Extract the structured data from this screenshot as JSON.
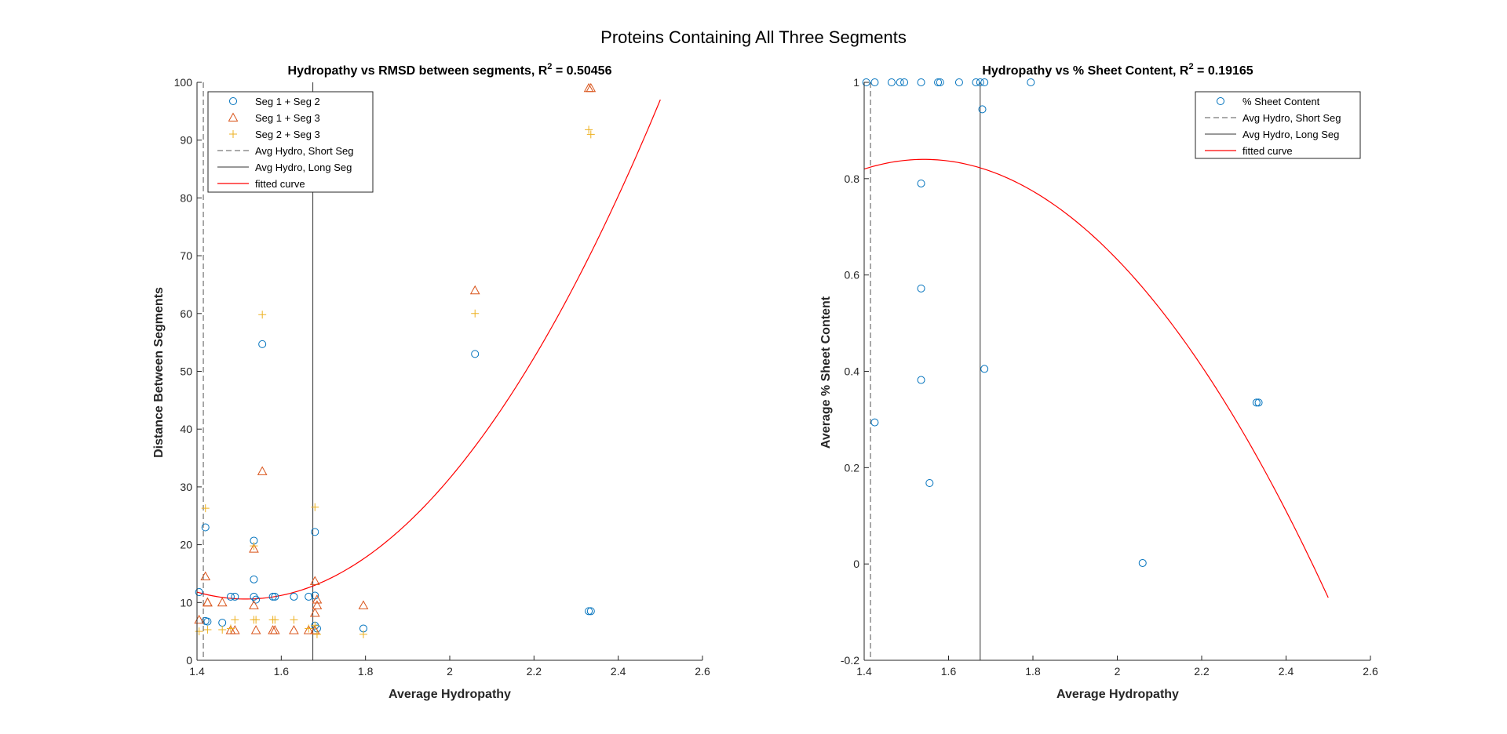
{
  "figure": {
    "suptitle": "Proteins Containing All Three Segments"
  },
  "colors": {
    "blue": "#0072BD",
    "orange": "#D95319",
    "yellow": "#EDB120",
    "red": "#FF0000",
    "line": "#262626"
  },
  "chart_data": [
    {
      "type": "scatter",
      "title_main": "Hydropathy vs RMSD between segments, R",
      "title_sup": "2",
      "title_end": " = 0.50456",
      "xlabel": "Average Hydropathy",
      "ylabel": "Distance Between Segments",
      "xlim": [
        1.4,
        2.6
      ],
      "ylim": [
        0,
        100
      ],
      "xticks": [
        1.4,
        1.6,
        1.8,
        2.0,
        2.2,
        2.4,
        2.6
      ],
      "xtick_labels": [
        "1.4",
        "1.6",
        "1.8",
        "2",
        "2.2",
        "2.4",
        "2.6"
      ],
      "yticks": [
        0,
        10,
        20,
        30,
        40,
        50,
        60,
        70,
        80,
        90,
        100
      ],
      "ytick_labels": [
        "0",
        "10",
        "20",
        "30",
        "40",
        "50",
        "60",
        "70",
        "80",
        "90",
        "100"
      ],
      "grid": false,
      "legend_position": "top-left",
      "series": [
        {
          "name": "Seg 1 + Seg 2",
          "marker": "circle",
          "color": "#0072BD",
          "x": [
            1.405,
            1.42,
            1.42,
            1.425,
            1.46,
            1.48,
            1.49,
            1.535,
            1.535,
            1.535,
            1.54,
            1.555,
            1.58,
            1.585,
            1.63,
            1.665,
            1.68,
            1.68,
            1.68,
            1.685,
            1.795,
            2.06,
            2.33,
            2.335
          ],
          "y": [
            11.8,
            23,
            6.8,
            6.7,
            6.5,
            11,
            11,
            20.7,
            14,
            11,
            10.5,
            54.7,
            11,
            11,
            11,
            11,
            22.2,
            11.2,
            6,
            5.5,
            5.5,
            53,
            8.5,
            8.5
          ]
        },
        {
          "name": "Seg 1 + Seg 3",
          "marker": "triangle",
          "color": "#D95319",
          "x": [
            1.405,
            1.42,
            1.425,
            1.425,
            1.46,
            1.48,
            1.49,
            1.535,
            1.535,
            1.54,
            1.555,
            1.58,
            1.585,
            1.63,
            1.665,
            1.68,
            1.68,
            1.68,
            1.685,
            1.685,
            1.795,
            2.06,
            2.33,
            2.335
          ],
          "y": [
            7,
            14.5,
            10,
            10,
            10,
            5.2,
            5.2,
            19.3,
            9.5,
            5.2,
            32.7,
            5.2,
            5.2,
            5.2,
            5.2,
            13.7,
            8.2,
            5.2,
            10.5,
            9.5,
            9.5,
            64,
            99,
            99
          ]
        },
        {
          "name": "Seg 2 + Seg 3",
          "marker": "plus",
          "color": "#EDB120",
          "x": [
            1.405,
            1.42,
            1.425,
            1.46,
            1.48,
            1.49,
            1.535,
            1.535,
            1.54,
            1.555,
            1.58,
            1.585,
            1.63,
            1.665,
            1.68,
            1.68,
            1.685,
            1.795,
            2.06,
            2.33,
            2.335
          ],
          "y": [
            5,
            26.3,
            5.3,
            5.3,
            5.5,
            7,
            7,
            19.8,
            7,
            59.8,
            7,
            7,
            7,
            5.5,
            26.5,
            6,
            4.5,
            4.5,
            60,
            91.8,
            91
          ]
        }
      ],
      "lines": [
        {
          "name": "Avg Hydro, Short Seg",
          "style": "dashed",
          "x": 1.415
        },
        {
          "name": "Avg Hydro, Long Seg",
          "style": "solid",
          "x": 1.675
        }
      ],
      "fit": {
        "name": "fitted curve",
        "kind": "quadratic",
        "x": [
          1.4,
          2.5
        ],
        "points": [
          [
            1.4,
            11.8
          ],
          [
            1.52,
            10.6
          ],
          [
            2.5,
            97
          ]
        ]
      }
    },
    {
      "type": "scatter",
      "title_main": "Hydropathy vs % Sheet Content, R",
      "title_sup": "2",
      "title_end": " = 0.19165",
      "xlabel": "Average Hydropathy",
      "ylabel": "Average % Sheet Content",
      "xlim": [
        1.4,
        2.6
      ],
      "ylim": [
        -0.2,
        1.0
      ],
      "xticks": [
        1.4,
        1.6,
        1.8,
        2.0,
        2.2,
        2.4,
        2.6
      ],
      "xtick_labels": [
        "1.4",
        "1.6",
        "1.8",
        "2",
        "2.2",
        "2.4",
        "2.6"
      ],
      "yticks": [
        -0.2,
        0,
        0.2,
        0.4,
        0.6,
        0.8,
        1.0
      ],
      "ytick_labels": [
        "-0.2",
        "0",
        "0.2",
        "0.4",
        "0.6",
        "0.8",
        "1"
      ],
      "grid": false,
      "legend_position": "top-right",
      "series": [
        {
          "name": "% Sheet Content",
          "marker": "circle",
          "color": "#0072BD",
          "x": [
            1.405,
            1.425,
            1.465,
            1.485,
            1.495,
            1.535,
            1.575,
            1.58,
            1.625,
            1.665,
            1.675,
            1.685,
            1.795,
            1.535,
            1.535,
            1.535,
            1.555,
            1.68,
            1.685,
            1.425,
            2.06,
            2.33,
            2.335
          ],
          "y": [
            1,
            1,
            1,
            1,
            1,
            1,
            1,
            1,
            1,
            1,
            1,
            1,
            1,
            0.79,
            0.572,
            0.382,
            0.168,
            0.944,
            0.405,
            0.294,
            0.002,
            0.335,
            0.335
          ]
        }
      ],
      "lines": [
        {
          "name": "Avg Hydro, Short Seg",
          "style": "dashed",
          "x": 1.415
        },
        {
          "name": "Avg Hydro, Long Seg",
          "style": "solid",
          "x": 1.675
        }
      ],
      "fit": {
        "name": "fitted curve",
        "kind": "quadratic",
        "x": [
          1.4,
          2.5
        ],
        "points": [
          [
            1.4,
            0.82
          ],
          [
            1.54,
            0.84
          ],
          [
            2.5,
            -0.07
          ]
        ]
      }
    }
  ]
}
